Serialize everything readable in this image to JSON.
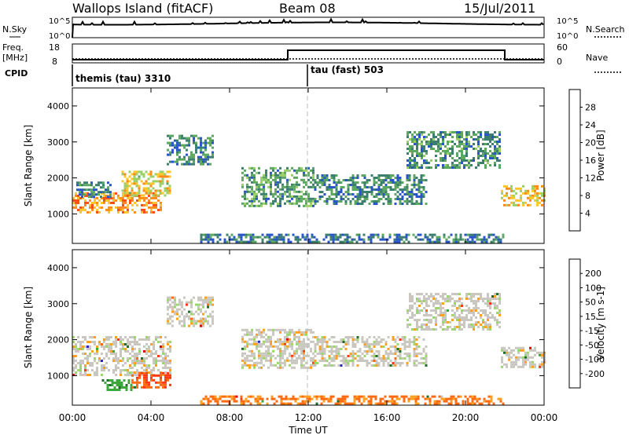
{
  "header": {
    "station": "Wallops Island (fitACF)",
    "beam": "Beam 08",
    "date": "15/Jul/2011"
  },
  "top_panels": {
    "nsky_label": "N.Sky",
    "nsky_ticks": [
      "10^5",
      "10^0"
    ],
    "nsearch_label": "N.Search",
    "nsearch_ticks": [
      "10^5",
      "10^0"
    ],
    "freq_label_1": "Freq.",
    "freq_label_2": "[MHz]",
    "freq_ticks": [
      "18",
      "8"
    ],
    "nave_label": "Nave",
    "nave_ticks": [
      "60",
      "0"
    ],
    "cpid_label": "CPID",
    "cpid_modes": [
      {
        "name": "themis (tau) 3310",
        "start_hour": 0
      },
      {
        "name": "tau (fast) 503",
        "start_hour": 12
      }
    ]
  },
  "x_axis": {
    "label": "Time UT",
    "ticks": [
      "00:00",
      "04:00",
      "08:00",
      "12:00",
      "16:00",
      "20:00",
      "00:00"
    ]
  },
  "power_panel": {
    "ylabel": "Slant Range [km]",
    "yticks": [
      "4000",
      "3000",
      "2000",
      "1000"
    ],
    "colorbar_label": "Power [dB]",
    "colorbar_ticks": [
      "28",
      "24",
      "20",
      "16",
      "12",
      "8",
      "4"
    ],
    "colors": [
      "#1a1aff",
      "#2a55c8",
      "#3c7f6e",
      "#5ca860",
      "#9ad066",
      "#ffc629",
      "#ff8a1a",
      "#ff4a12",
      "#e80000"
    ]
  },
  "velocity_panel": {
    "ylabel": "Slant Range [km]",
    "yticks": [
      "4000",
      "3000",
      "2000",
      "1000"
    ],
    "colorbar_label": "Velocity [m s-1]",
    "colorbar_ticks": [
      "200",
      "100",
      "50",
      "15",
      "-15",
      "-50",
      "-100",
      "-200"
    ],
    "colors": [
      "#2a2ab4",
      "#1e6e2a",
      "#3ca83c",
      "#9bd76a",
      "#c9c7c0",
      "#ffa020",
      "#ff6a10",
      "#ff3a10",
      "#e00000"
    ]
  },
  "chart_data": [
    {
      "type": "heatmap",
      "title": "Power",
      "xlabel": "Time UT",
      "ylabel": "Slant Range [km]",
      "xlim": [
        0,
        24
      ],
      "ylim": [
        180,
        4500
      ],
      "colorbar": {
        "label": "Power [dB]",
        "range": [
          0,
          30
        ]
      },
      "regions": [
        {
          "t0": 0.0,
          "t1": 4.5,
          "r0": 1050,
          "r1": 1600,
          "value": 22
        },
        {
          "t0": 2.5,
          "t1": 5.0,
          "r0": 1500,
          "r1": 2200,
          "value": 18
        },
        {
          "t0": 0.2,
          "t1": 2.0,
          "r0": 1450,
          "r1": 1900,
          "value": 8
        },
        {
          "t0": 4.8,
          "t1": 7.2,
          "r0": 2400,
          "r1": 3200,
          "value": 8
        },
        {
          "t0": 8.6,
          "t1": 12.3,
          "r0": 1200,
          "r1": 2300,
          "value": 10
        },
        {
          "t0": 12.3,
          "t1": 18.0,
          "r0": 1300,
          "r1": 2100,
          "value": 8
        },
        {
          "t0": 17.0,
          "t1": 21.7,
          "r0": 2300,
          "r1": 3300,
          "value": 9
        },
        {
          "t0": 21.8,
          "t1": 24.0,
          "r0": 1250,
          "r1": 1800,
          "value": 18
        },
        {
          "t0": 6.5,
          "t1": 22.0,
          "r0": 200,
          "r1": 450,
          "value": 7
        }
      ]
    },
    {
      "type": "heatmap",
      "title": "Velocity",
      "xlabel": "Time UT",
      "ylabel": "Slant Range [km]",
      "xlim": [
        0,
        24
      ],
      "ylim": [
        180,
        4500
      ],
      "colorbar": {
        "label": "Velocity [m s-1]",
        "range": [
          -200,
          200
        ]
      },
      "regions": [
        {
          "t0": 0.0,
          "t1": 5.0,
          "r0": 1050,
          "r1": 2100,
          "value": 0
        },
        {
          "t0": 4.8,
          "t1": 7.2,
          "r0": 2400,
          "r1": 3200,
          "value": 0
        },
        {
          "t0": 8.6,
          "t1": 12.3,
          "r0": 1200,
          "r1": 2300,
          "value": 0
        },
        {
          "t0": 12.3,
          "t1": 18.0,
          "r0": 1300,
          "r1": 2100,
          "value": 0
        },
        {
          "t0": 17.0,
          "t1": 21.7,
          "r0": 2300,
          "r1": 3300,
          "value": 0
        },
        {
          "t0": 21.8,
          "t1": 24.0,
          "r0": 1250,
          "r1": 1800,
          "value": 0
        },
        {
          "t0": 1.5,
          "t1": 3.0,
          "r0": 600,
          "r1": 900,
          "value": 60
        },
        {
          "t0": 3.0,
          "t1": 5.0,
          "r0": 700,
          "r1": 1100,
          "value": -70
        },
        {
          "t0": 6.5,
          "t1": 22.0,
          "r0": 200,
          "r1": 450,
          "value": -40
        }
      ]
    }
  ]
}
